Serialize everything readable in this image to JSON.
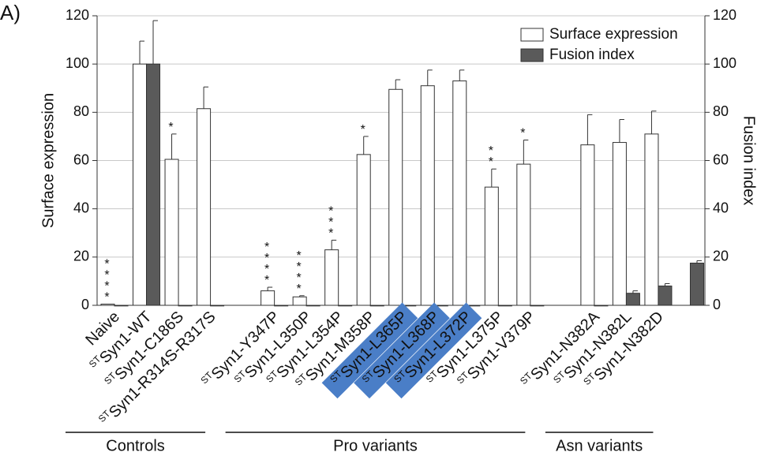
{
  "chart_data": {
    "type": "bar",
    "panel_label": "A)",
    "y_label": "Surface expression",
    "y2_label": "Fusion index",
    "ylim": [
      0,
      120
    ],
    "yticks": [
      0,
      20,
      40,
      60,
      80,
      100,
      120
    ],
    "y2lim": [
      0,
      120
    ],
    "y2ticks": [
      0,
      20,
      40,
      60,
      80,
      100,
      120
    ],
    "grid": true,
    "legend_position": "upper right",
    "highlight_color": "#4a7ec7",
    "categories": [
      {
        "text": "Naive"
      },
      {
        "sup": "ST",
        "text": "Syn1-WT"
      },
      {
        "sup": "ST",
        "text": "Syn1-C186S"
      },
      {
        "sup": "ST",
        "text": "Syn1-R314S-R317S"
      },
      null,
      {
        "sup": "ST",
        "text": "Syn1-Y347P"
      },
      {
        "sup": "ST",
        "text": "Syn1-L350P"
      },
      {
        "sup": "ST",
        "text": "Syn1-L354P"
      },
      {
        "sup": "ST",
        "text": "Syn1-M358P"
      },
      {
        "sup": "ST",
        "text": "Syn1-L365P",
        "highlight": true
      },
      {
        "sup": "ST",
        "text": "Syn1-L368P",
        "highlight": true
      },
      {
        "sup": "ST",
        "text": "Syn1-L372P",
        "highlight": true
      },
      {
        "sup": "ST",
        "text": "Syn1-L375P"
      },
      {
        "sup": "ST",
        "text": "Syn1-V379P"
      },
      null,
      {
        "sup": "ST",
        "text": "Syn1-N382A"
      },
      {
        "sup": "ST",
        "text": "Syn1-N382L"
      },
      {
        "sup": "ST",
        "text": "Syn1-N382D"
      },
      null
    ],
    "series": [
      {
        "name": "Surface expression",
        "color": "#ffffff",
        "values": [
          0.5,
          100,
          60.5,
          81.5,
          null,
          6,
          3.5,
          23,
          62.5,
          89.5,
          91,
          93,
          49,
          58.5,
          null,
          66.5,
          67.5,
          71,
          null
        ],
        "errors": [
          0,
          9.5,
          10.5,
          9,
          null,
          1.5,
          0.5,
          4,
          7.5,
          4,
          6.5,
          4.5,
          7.5,
          10,
          null,
          12.5,
          9.5,
          9.5,
          null
        ]
      },
      {
        "name": "Fusion index",
        "color": "#5a5a5a",
        "axis": "y2",
        "values": [
          0,
          100,
          0,
          0,
          null,
          0,
          0,
          0,
          0,
          0,
          0,
          0,
          0,
          0,
          null,
          0,
          5,
          8,
          17.5
        ],
        "errors": [
          0,
          18,
          0,
          0,
          null,
          0,
          0,
          0,
          0,
          0,
          0,
          0,
          0,
          0,
          null,
          0,
          1,
          1,
          1
        ]
      }
    ],
    "significance": [
      "****",
      null,
      "*",
      null,
      null,
      "****",
      "****",
      "***",
      "*",
      null,
      null,
      null,
      "**",
      "*",
      null,
      null,
      null,
      null,
      null
    ],
    "groups": [
      {
        "label": "Controls",
        "from": 0,
        "to": 3
      },
      {
        "label": "Pro variants",
        "from": 5,
        "to": 13
      },
      {
        "label": "Asn variants",
        "from": 15,
        "to": 17
      }
    ]
  }
}
